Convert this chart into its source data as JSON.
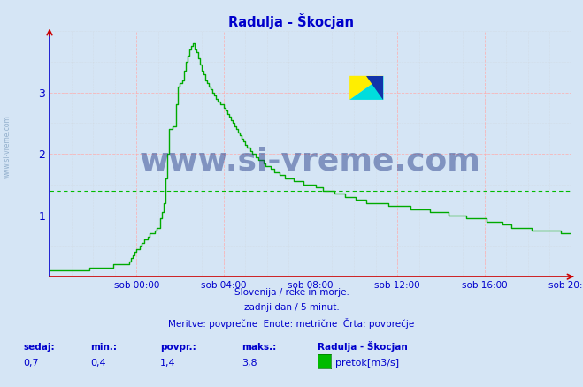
{
  "title": "Radulja - Škocjan",
  "bg_color": "#d5e5f5",
  "plot_bg_color": "#d5e5f5",
  "line_color": "#00aa00",
  "avg_line_color": "#00bb00",
  "avg_value": 1.4,
  "ylim": [
    0,
    4.0
  ],
  "yticks": [
    1,
    2,
    3
  ],
  "tick_color": "#0000cc",
  "grid_color_major": "#ffaaaa",
  "grid_color_minor": "#cccccc",
  "xtick_labels": [
    "sob 00:00",
    "sob 04:00",
    "sob 08:00",
    "sob 12:00",
    "sob 16:00",
    "sob 20:00"
  ],
  "watermark_text": "www.si-vreme.com",
  "subtitle1": "Slovenija / reke in morje.",
  "subtitle2": "zadnji dan / 5 minut.",
  "subtitle3": "Meritve: povprečne  Enote: metrične  Črta: povprečje",
  "legend_station": "Radulja - Škocjan",
  "legend_label": "pretok[m3/s]",
  "stat_sedaj": "0,7",
  "stat_min": "0,4",
  "stat_povpr": "1,4",
  "stat_maks": "3,8",
  "footer_color": "#0000cc",
  "title_color": "#0000cc",
  "watermark_color": "#1a3080",
  "watermark_alpha": 0.45,
  "spine_bottom_color": "#cc0000",
  "spine_left_color": "#0000cc",
  "side_watermark_color": "#7799bb",
  "side_watermark_alpha": 0.7
}
